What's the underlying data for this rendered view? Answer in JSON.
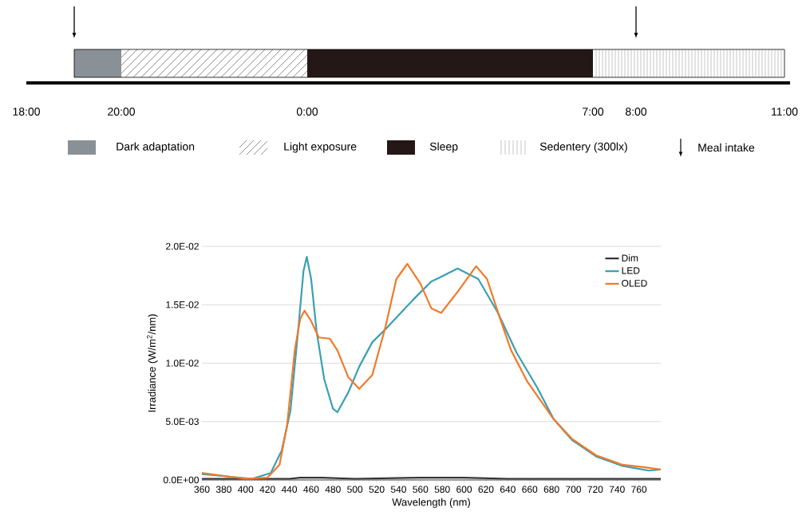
{
  "chart_data": [
    {
      "type": "other",
      "annotations": [
        "18:00",
        "20:00",
        "0:00",
        "7:00",
        "8:00",
        "11:00",
        "Dark adaptation",
        "Light exposure",
        "Sleep",
        "Sedentery (300lx)",
        "Meal intake"
      ]
    },
    {
      "type": "line",
      "xlabel": "Wavelength (nm)",
      "ylabel": "Irradiance (W/m$^{2}$/nm)",
      "xlim": [
        360,
        780
      ],
      "ylim": [
        0,
        0.02
      ],
      "xticks": [
        360,
        380,
        400,
        420,
        440,
        460,
        480,
        500,
        520,
        540,
        560,
        580,
        600,
        620,
        640,
        660,
        680,
        700,
        720,
        740,
        760
      ],
      "yticks": [
        {
          "value": 0,
          "label": "0.0E+00"
        },
        {
          "value": 0.005,
          "label": "5.0E-03"
        },
        {
          "value": 0.01,
          "label": "1.0E-02"
        },
        {
          "value": 0.015,
          "label": "1.5E-02"
        },
        {
          "value": 0.02,
          "label": "2.0E-02"
        }
      ],
      "grid": "y",
      "legend": "top right",
      "series": [
        {
          "name": "Dim",
          "color": "#333333",
          "x": [
            360,
            400,
            440,
            450,
            460,
            470,
            500,
            560,
            600,
            640,
            680,
            720,
            780
          ],
          "values": [
            0.0001,
            0.0001,
            0.0001,
            0.0002,
            0.0002,
            0.0002,
            0.0001,
            0.0002,
            0.0002,
            0.0001,
            0.0001,
            0.0001,
            0.0001
          ]
        },
        {
          "name": "LED",
          "color": "#3a9fb3",
          "x": [
            360,
            406,
            423,
            433,
            441,
            448,
            453,
            456,
            460,
            465,
            472,
            480,
            484,
            494,
            504,
            516,
            528,
            553,
            570,
            577,
            594,
            613,
            631,
            648,
            667,
            682,
            699,
            721,
            745,
            769,
            780
          ],
          "values": [
            0.0005,
            0.0001,
            0.0006,
            0.0025,
            0.0059,
            0.0127,
            0.0179,
            0.0191,
            0.0172,
            0.0127,
            0.0086,
            0.0061,
            0.0058,
            0.0075,
            0.0097,
            0.0118,
            0.0129,
            0.0154,
            0.017,
            0.0173,
            0.0181,
            0.0172,
            0.0143,
            0.0109,
            0.0079,
            0.0052,
            0.0034,
            0.002,
            0.0012,
            0.0008,
            0.0009
          ]
        },
        {
          "name": "OLED",
          "color": "#f07a2a",
          "x": [
            360,
            400,
            420,
            431,
            438,
            445,
            450,
            454,
            460,
            467,
            477,
            484,
            494,
            504,
            516,
            528,
            538,
            548,
            560,
            570,
            579,
            594,
            611,
            621,
            633,
            643,
            658,
            682,
            699,
            721,
            745,
            764,
            780
          ],
          "values": [
            0.0006,
            0.0001,
            0.0002,
            0.0013,
            0.0047,
            0.0111,
            0.0138,
            0.0145,
            0.0136,
            0.0122,
            0.0121,
            0.0111,
            0.0088,
            0.0078,
            0.009,
            0.0131,
            0.0172,
            0.0185,
            0.0168,
            0.0147,
            0.0143,
            0.0161,
            0.0183,
            0.0172,
            0.0138,
            0.0111,
            0.0084,
            0.0052,
            0.0035,
            0.0021,
            0.0013,
            0.0011,
            0.0009
          ]
        }
      ]
    }
  ]
}
